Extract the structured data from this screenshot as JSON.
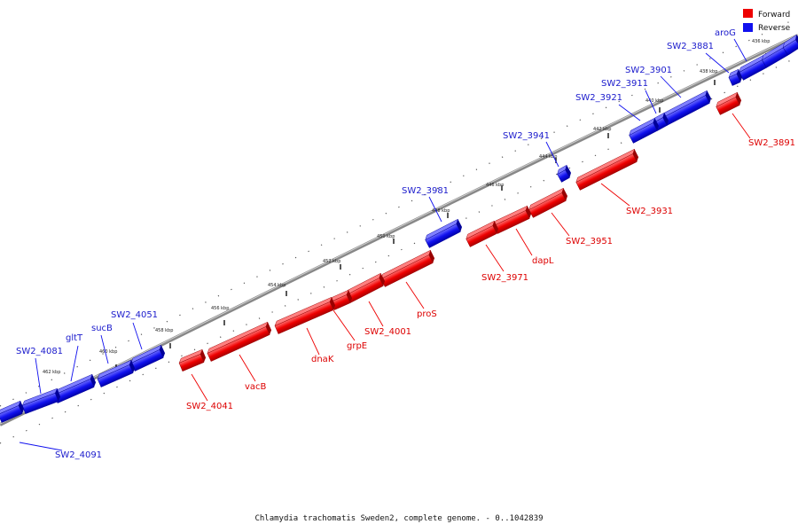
{
  "caption": "Chlamydia trachomatis Sweden2, complete genome. - 0..1042839",
  "legend": [
    {
      "label": "Forward",
      "color": "#ee0000"
    },
    {
      "label": "Reverse",
      "color": "#1111ee"
    }
  ],
  "ticks": [
    {
      "label": "436 kbp"
    },
    {
      "label": "438 kbp"
    },
    {
      "label": "440 kbp"
    },
    {
      "label": "442 kbp"
    },
    {
      "label": "444 kbp"
    },
    {
      "label": "446 kbp"
    },
    {
      "label": "448 kbp"
    },
    {
      "label": "450 kbp"
    },
    {
      "label": "452 kbp"
    },
    {
      "label": "454 kbp"
    },
    {
      "label": "456 kbp"
    },
    {
      "label": "458 kbp"
    },
    {
      "label": "460 kbp"
    },
    {
      "label": "462 kbp"
    }
  ],
  "genes": [
    {
      "name": "aroG",
      "strand": "reverse"
    },
    {
      "name": "SW2_3881",
      "strand": "reverse"
    },
    {
      "name": "SW2_3891",
      "strand": "forward"
    },
    {
      "name": "SW2_3901",
      "strand": "reverse"
    },
    {
      "name": "SW2_3911",
      "strand": "reverse"
    },
    {
      "name": "SW2_3921",
      "strand": "reverse"
    },
    {
      "name": "SW2_3931",
      "strand": "forward"
    },
    {
      "name": "SW2_3941",
      "strand": "reverse"
    },
    {
      "name": "SW2_3951",
      "strand": "forward"
    },
    {
      "name": "dapL",
      "strand": "forward"
    },
    {
      "name": "SW2_3971",
      "strand": "forward"
    },
    {
      "name": "SW2_3981",
      "strand": "reverse"
    },
    {
      "name": "proS",
      "strand": "forward"
    },
    {
      "name": "SW2_4001",
      "strand": "forward"
    },
    {
      "name": "grpE",
      "strand": "forward"
    },
    {
      "name": "dnaK",
      "strand": "forward"
    },
    {
      "name": "vacB",
      "strand": "forward"
    },
    {
      "name": "SW2_4041",
      "strand": "forward"
    },
    {
      "name": "SW2_4051",
      "strand": "reverse"
    },
    {
      "name": "sucB",
      "strand": "reverse"
    },
    {
      "name": "gltT",
      "strand": "reverse"
    },
    {
      "name": "SW2_4081",
      "strand": "reverse"
    },
    {
      "name": "SW2_4091",
      "strand": "reverse"
    }
  ]
}
